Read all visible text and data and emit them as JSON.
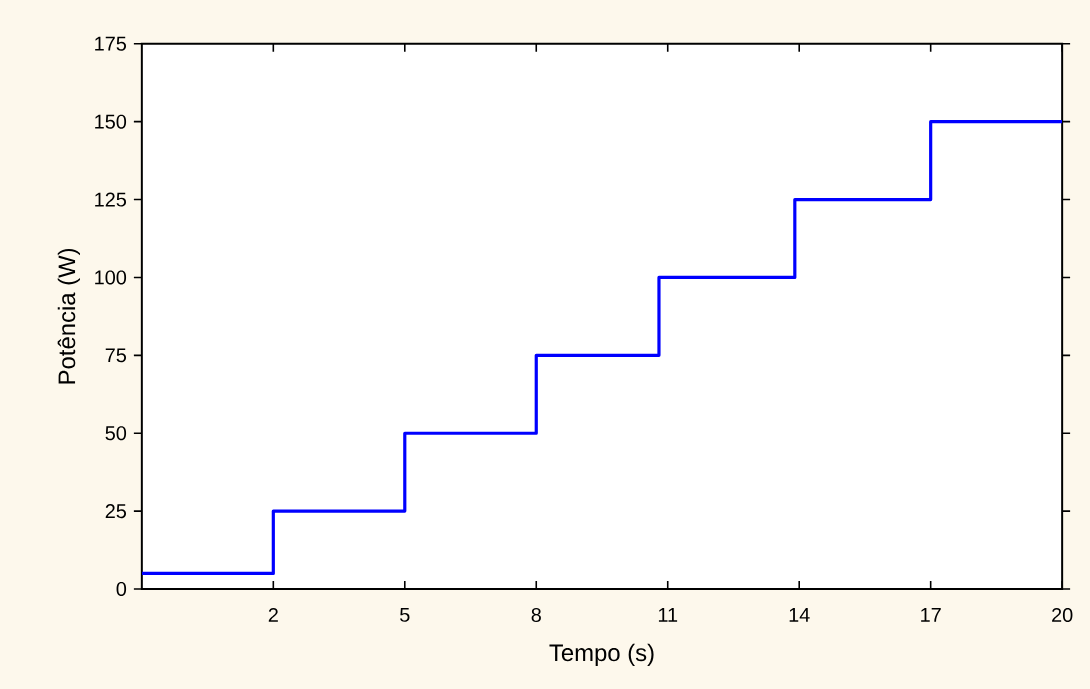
{
  "chart_data": {
    "type": "step",
    "xlabel": "Tempo (s)",
    "ylabel": "Potência (W)",
    "x": [
      -1,
      2,
      5,
      8,
      10.8,
      13.9,
      17,
      20
    ],
    "series": [
      {
        "color": "#0000ff",
        "values": [
          5,
          25,
          50,
          75,
          100,
          125,
          150,
          150
        ]
      }
    ],
    "xlim": [
      -1,
      20
    ],
    "xticks": [
      2,
      5,
      8,
      11,
      14,
      17,
      20
    ],
    "ylim": [
      0,
      175
    ],
    "yticks": [
      0,
      25,
      50,
      75,
      100,
      125,
      150,
      175
    ],
    "grid": false,
    "marker": "none",
    "line_style": "solid"
  }
}
